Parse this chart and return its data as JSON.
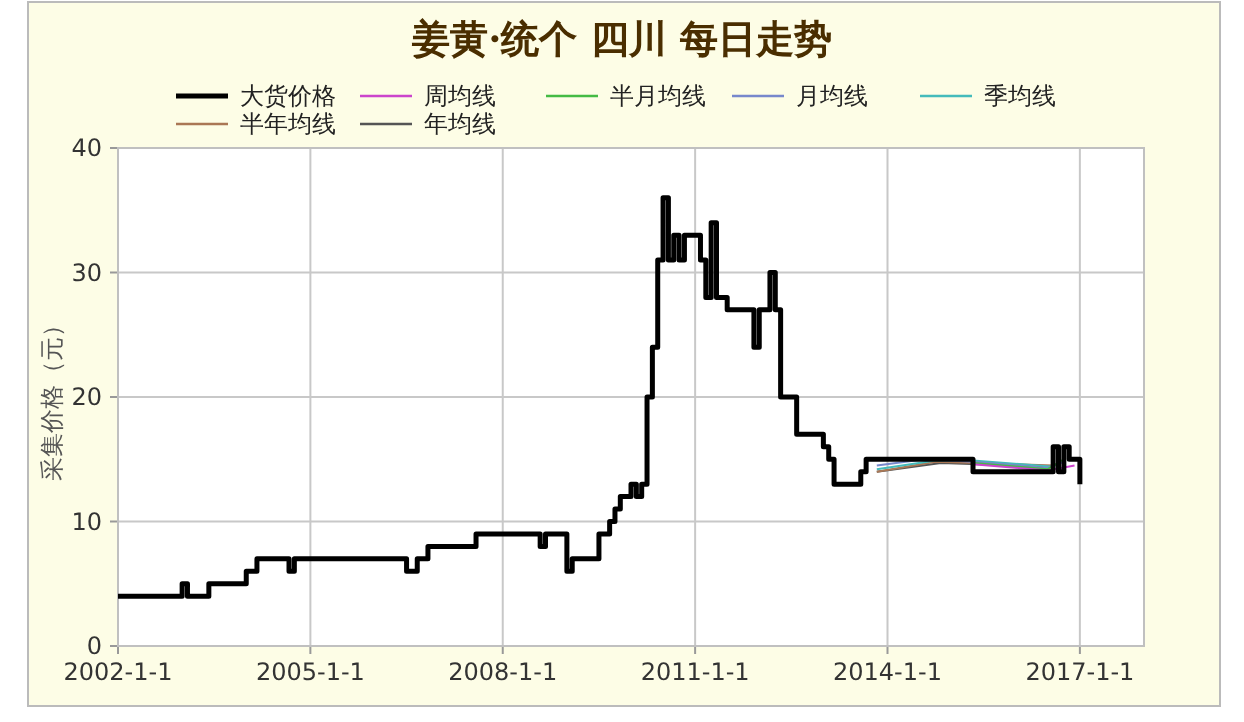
{
  "chart_data": {
    "type": "step",
    "title": "姜黄·统个 四川 每日走势",
    "ylabel": "采集价格（元）",
    "xlim": [
      "2002-01-01",
      "2018-01-01"
    ],
    "xticks": [
      {
        "value": "2002-01-01",
        "label": "2002-1-1"
      },
      {
        "value": "2005-01-01",
        "label": "2005-1-1"
      },
      {
        "value": "2008-01-01",
        "label": "2008-1-1"
      },
      {
        "value": "2011-01-01",
        "label": "2011-1-1"
      },
      {
        "value": "2014-01-01",
        "label": "2014-1-1"
      },
      {
        "value": "2017-01-01",
        "label": "2017-1-1"
      }
    ],
    "ylim": [
      0,
      40
    ],
    "yticks": [
      0,
      10,
      20,
      30,
      40
    ],
    "grid": true,
    "legend": "top",
    "series": [
      {
        "name": "大货价格",
        "color": "#000000",
        "x": [
          "2002-01",
          "2003-01",
          "2003-02",
          "2003-06",
          "2004-01",
          "2004-03",
          "2004-09",
          "2004-10",
          "2006-07",
          "2006-09",
          "2006-11",
          "2007-08",
          "2008-08",
          "2008-09",
          "2009-01",
          "2009-02",
          "2009-07",
          "2009-09",
          "2009-10",
          "2009-11",
          "2010-01",
          "2010-02",
          "2010-03",
          "2010-04",
          "2010-05",
          "2010-06",
          "2010-07",
          "2010-08",
          "2010-09",
          "2010-10",
          "2010-11",
          "2011-01",
          "2011-02",
          "2011-03",
          "2011-04",
          "2011-05",
          "2011-07",
          "2011-12",
          "2012-01",
          "2012-03",
          "2012-04",
          "2012-05",
          "2012-08",
          "2013-01",
          "2013-02",
          "2013-03",
          "2013-08",
          "2013-09",
          "2015-05",
          "2016-08",
          "2016-09",
          "2016-10",
          "2016-11",
          "2017-01"
        ],
        "values": [
          4,
          5,
          4,
          5,
          6,
          7,
          6,
          7,
          6,
          7,
          8,
          9,
          8,
          9,
          6,
          7,
          9,
          10,
          11,
          12,
          13,
          12,
          13,
          20,
          24,
          31,
          36,
          31,
          33,
          31,
          33,
          33,
          31,
          28,
          34,
          28,
          27,
          24,
          27,
          30,
          27,
          20,
          17,
          16,
          15,
          13,
          14,
          15,
          14,
          16,
          14,
          16,
          15,
          13
        ]
      },
      {
        "name": "周均线",
        "color": "#cc44cc",
        "type": "line",
        "x": [
          "2015-05",
          "2016-07",
          "2016-09",
          "2016-12"
        ],
        "values": [
          14.6,
          14.1,
          null,
          14.5
        ]
      },
      {
        "name": "半月均线",
        "color": "#44bb44",
        "type": "line",
        "x": [
          "2015-05",
          "2016-07",
          "2016-10"
        ],
        "values": [
          14.7,
          14.2,
          15
        ]
      },
      {
        "name": "月均线",
        "color": "#7788cc",
        "type": "line",
        "x": [
          "2013-11",
          "2014-08",
          "2015-05",
          "2016-07",
          "2016-10"
        ],
        "values": [
          14.5,
          15,
          14.8,
          14.3,
          14.8
        ]
      },
      {
        "name": "季均线",
        "color": "#44bbbb",
        "type": "line",
        "x": [
          "2013-11",
          "2014-10",
          "2015-05",
          "2016-08"
        ],
        "values": [
          14.2,
          14.9,
          14.9,
          14.4
        ]
      },
      {
        "name": "半年均线",
        "color": "#aa7755",
        "type": "line",
        "x": [
          "2013-11",
          "2014-10",
          "2016-08"
        ],
        "values": [
          14,
          14.8,
          14.5
        ]
      },
      {
        "name": "年均线",
        "color": "#555555",
        "type": "line",
        "x": [
          "2013-11",
          "2014-11",
          "2016-08"
        ],
        "values": [
          14,
          14.7,
          14.4
        ]
      }
    ]
  }
}
